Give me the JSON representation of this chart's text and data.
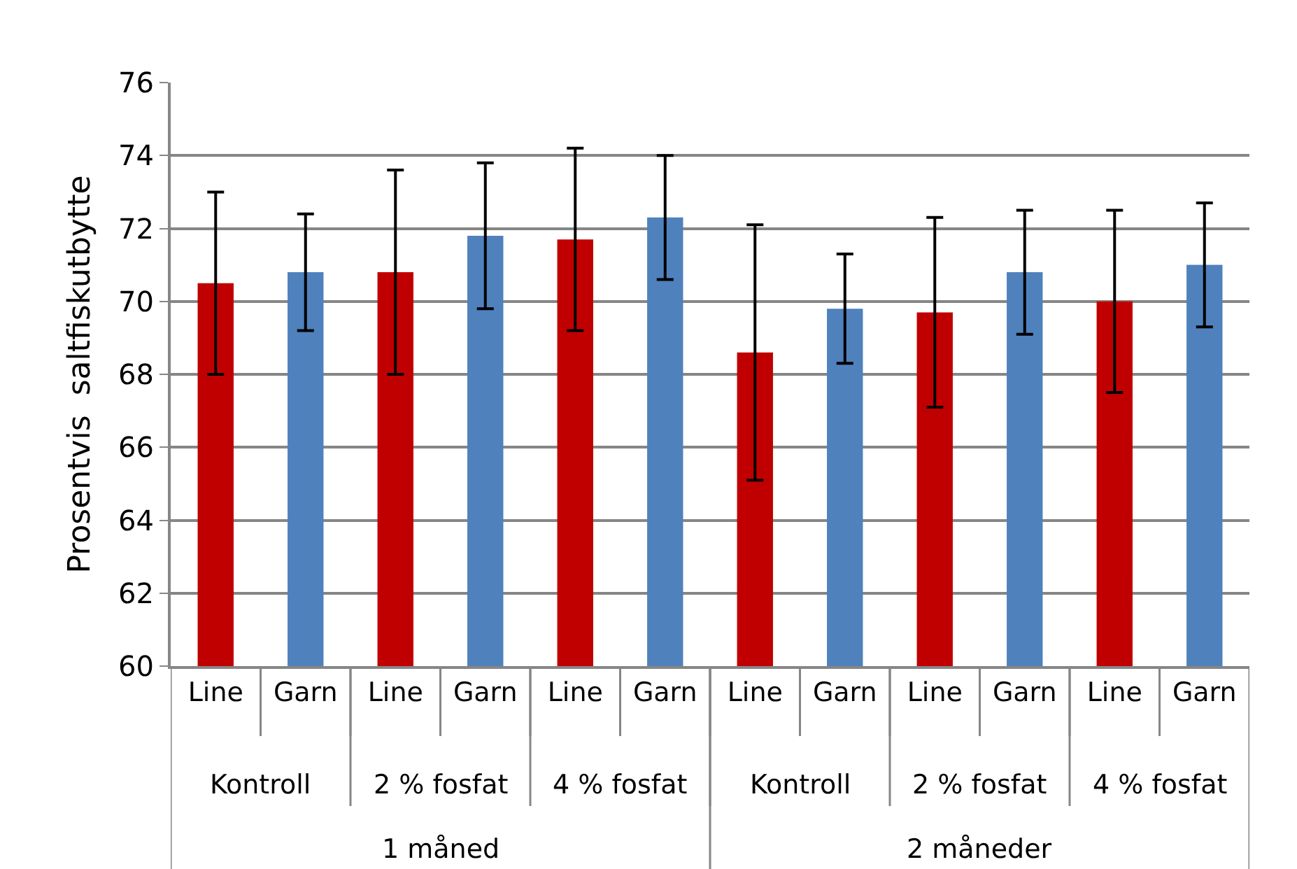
{
  "chart_data": {
    "type": "bar",
    "ylabel": "Prosentvis  saltfiskutbytte",
    "categories": [
      "Line",
      "Garn",
      "Line",
      "Garn",
      "Line",
      "Garn",
      "Line",
      "Garn",
      "Line",
      "Garn",
      "Line",
      "Garn"
    ],
    "values": [
      70.5,
      70.8,
      70.8,
      71.8,
      71.7,
      72.3,
      68.6,
      69.8,
      69.7,
      70.8,
      70.0,
      71.0
    ],
    "errors": [
      2.5,
      1.6,
      2.8,
      2.0,
      2.5,
      1.7,
      3.5,
      1.5,
      2.6,
      1.7,
      2.5,
      1.7
    ],
    "colors": [
      "#c00000",
      "#4f81bd",
      "#c00000",
      "#4f81bd",
      "#c00000",
      "#4f81bd",
      "#c00000",
      "#4f81bd",
      "#c00000",
      "#4f81bd",
      "#c00000",
      "#4f81bd"
    ],
    "annotations": [
      "Kontroll",
      "2 % fosfat",
      "4 % fosfat",
      "Kontroll",
      "2 % fosfat",
      "4 % fosfat",
      "1 måned",
      "2 måneder"
    ],
    "ylim": [
      60,
      76
    ],
    "yticks": [
      60,
      62,
      64,
      66,
      68,
      70,
      72,
      74,
      76
    ],
    "grid": "y"
  }
}
